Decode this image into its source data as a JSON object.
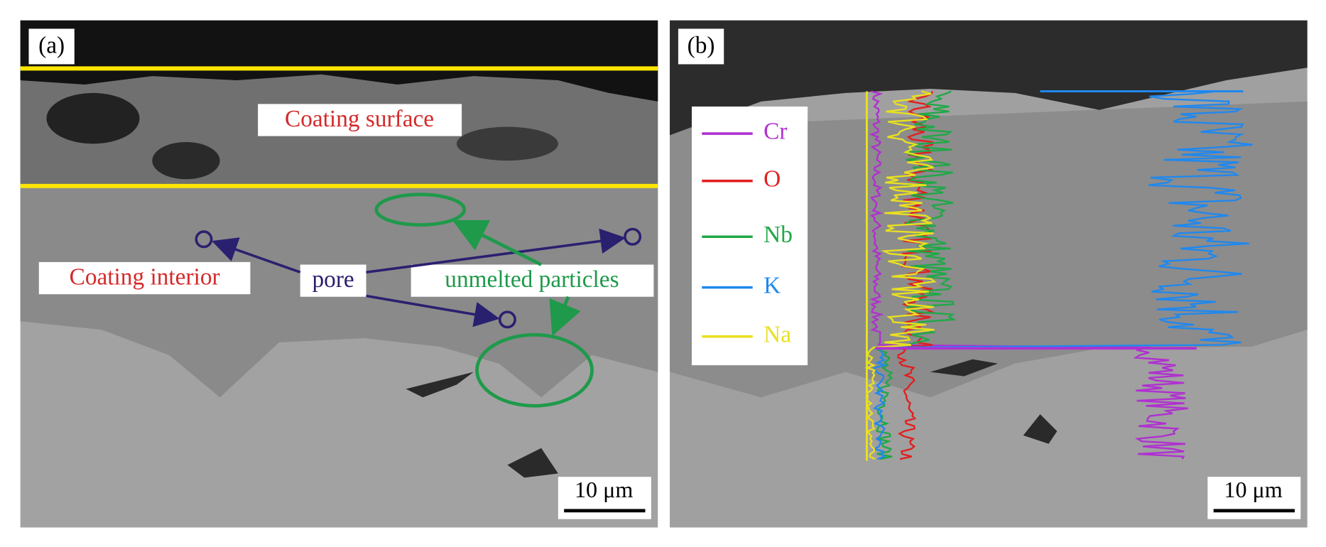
{
  "panels": [
    {
      "label": "(a)",
      "annotations": {
        "coating_surface": "Coating surface",
        "coating_interior": "Coating interior",
        "pore": "pore",
        "unmelted_particles": "unmelted particles"
      },
      "scale_bar": "10 μm"
    },
    {
      "label": "(b)",
      "legend": [
        {
          "name": "Cr",
          "color": "#b030d0"
        },
        {
          "name": "O",
          "color": "#e02020"
        },
        {
          "name": "Nb",
          "color": "#20a848"
        },
        {
          "name": "K",
          "color": "#2088ee"
        },
        {
          "name": "Na",
          "color": "#e8e020"
        }
      ],
      "scale_bar": "10 μm"
    }
  ]
}
